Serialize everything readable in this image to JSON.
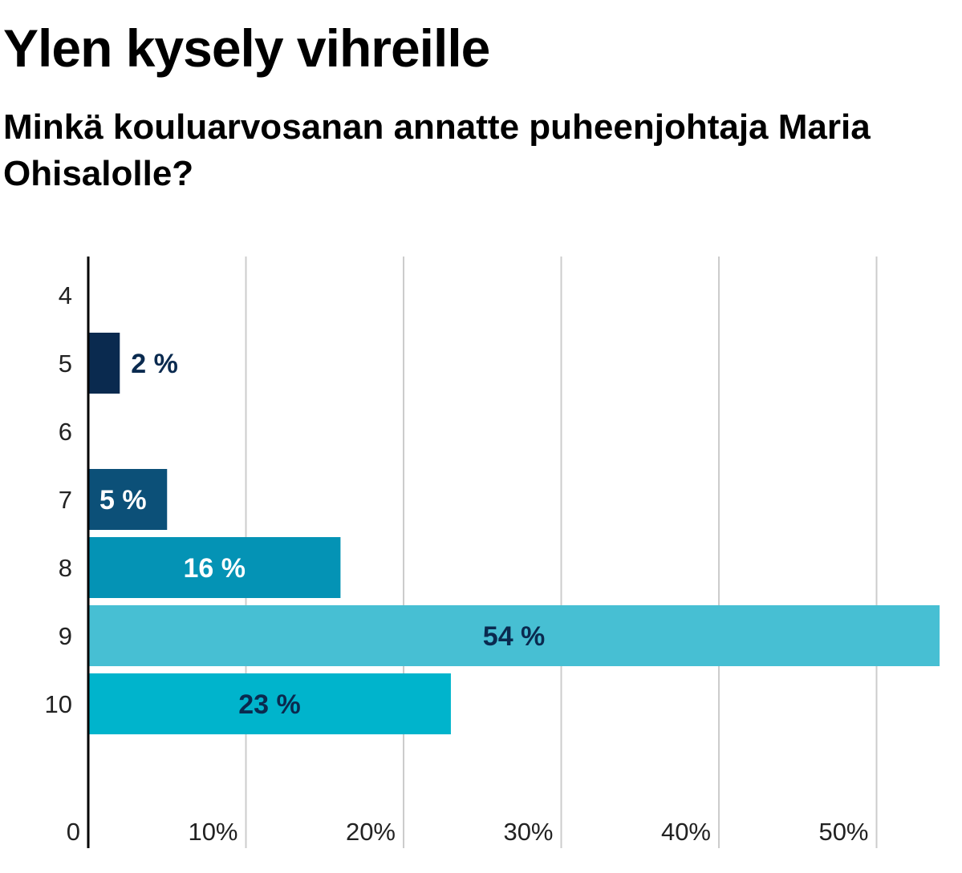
{
  "chart_data": {
    "type": "bar",
    "orientation": "horizontal",
    "title": "Ylen kysely vihreille",
    "subtitle": "Minkä kouluarvosanan annatte puheenjohtaja Maria Ohisalolle?",
    "categories": [
      "4",
      "5",
      "6",
      "7",
      "8",
      "9",
      "10"
    ],
    "values": [
      null,
      2,
      null,
      5,
      16,
      54,
      23
    ],
    "data_labels": [
      "",
      "2 %",
      "",
      "5 %",
      "16 %",
      "54 %",
      "23 %"
    ],
    "bar_colors": [
      "#0a2a4f",
      "#0a2a4f",
      "#0a2a4f",
      "#0c5078",
      "#0493b5",
      "#47bfd3",
      "#00b4cc"
    ],
    "label_colors": [
      "#0a2a4f",
      "#0a2a4f",
      "#0a2a4f",
      "#ffffff",
      "#ffffff",
      "#0a2a4f",
      "#0a2a4f"
    ],
    "label_position": [
      "inside",
      "outside",
      "inside",
      "inside",
      "center",
      "center",
      "center"
    ],
    "x_ticks": [
      0,
      10,
      20,
      30,
      40,
      50
    ],
    "x_tick_labels": [
      "0",
      "10%",
      "20%",
      "30%",
      "40%",
      "50%"
    ],
    "xlim": [
      0,
      54
    ],
    "grid": true,
    "xlabel": "",
    "ylabel": ""
  }
}
